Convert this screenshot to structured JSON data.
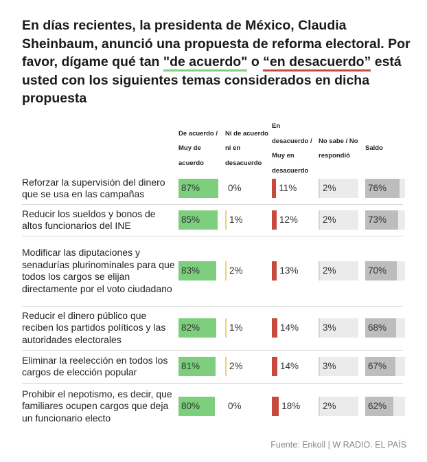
{
  "title": {
    "part1": "En días recientes, la presidenta de México, Claudia Sheinbaum, anunció una propuesta de reforma electoral. Por favor, dígame qué tan ",
    "green": "\"de acuerdo\"",
    "mid": " o ",
    "red": "“en desacuerdo”",
    "part2": " está usted con los siguientes temas considerados en dicha propuesta"
  },
  "colors": {
    "agree": "#7dce7d",
    "neutral": "#f2d06b",
    "disagree": "#c84a3c",
    "nosabe": "#d4d4d4",
    "saldo": "#bdbdbd",
    "track": "#ebebeb"
  },
  "chart_data": {
    "type": "table",
    "columns": [
      "De acuerdo / Muy de acuerdo",
      "Ni de acuerdo ni en desacuerdo",
      "En desacuerdo / Muy en desacuerdo",
      "No sabe / No respondió",
      "Saldo"
    ],
    "rows": [
      {
        "label": "Reforzar la supervisión del dinero que se usa en las campañas",
        "values": [
          87,
          0,
          11,
          2,
          76
        ]
      },
      {
        "label": "Reducir los sueldos y bonos de altos funcionarios del INE",
        "values": [
          85,
          1,
          12,
          2,
          73
        ]
      },
      {
        "label": "Modificar las diputaciones y senadurías plurinominales para que todos los cargos se elijan directamente por el voto ciudadano",
        "values": [
          83,
          2,
          13,
          2,
          70
        ]
      },
      {
        "label": "Reducir el dinero público que reciben los partidos políticos y las autoridades electorales",
        "values": [
          82,
          1,
          14,
          3,
          68
        ]
      },
      {
        "label": "Eliminar la reelección en todos los cargos de elección popular",
        "values": [
          81,
          2,
          14,
          3,
          67
        ]
      },
      {
        "label": "Prohibir el nepotismo, es decir, que familiares ocupen cargos que deja un funcionario electo",
        "values": [
          80,
          0,
          18,
          2,
          62
        ]
      }
    ],
    "value_suffix": "%"
  },
  "source": "Fuente: Enkoll | W RADIO. EL PAÍS"
}
